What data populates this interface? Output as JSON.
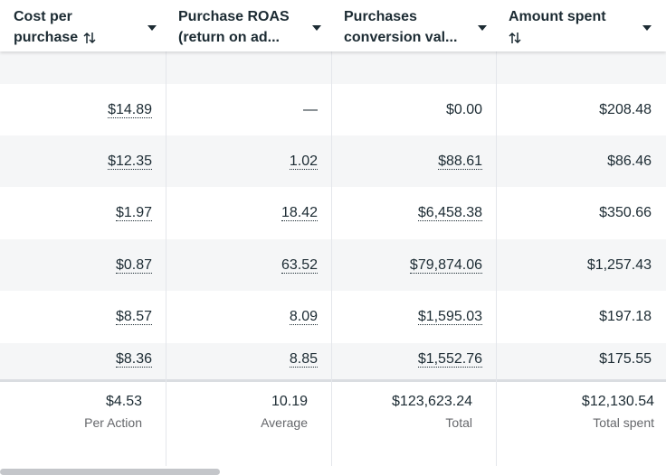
{
  "table": {
    "headers": [
      {
        "lines": [
          "Cost per",
          "purchase"
        ]
      },
      {
        "lines": [
          "Purchase ROAS",
          "(return on ad..."
        ]
      },
      {
        "lines": [
          "Purchases",
          "conversion val..."
        ]
      },
      {
        "lines": [
          "Amount spent"
        ]
      }
    ],
    "rows": [
      [
        "$14.89",
        "—",
        "$0.00",
        "$208.48"
      ],
      [
        "$12.35",
        "1.02",
        "$88.61",
        "$86.46"
      ],
      [
        "$1.97",
        "18.42",
        "$6,458.38",
        "$350.66"
      ],
      [
        "$0.87",
        "63.52",
        "$79,874.06",
        "$1,257.43"
      ],
      [
        "$8.57",
        "8.09",
        "$1,595.03",
        "$197.18"
      ],
      [
        "$8.36",
        "8.85",
        "$1,552.76",
        "$175.55"
      ]
    ],
    "footer": [
      {
        "value": "$4.53",
        "label": "Per Action"
      },
      {
        "value": "10.19",
        "label": "Average"
      },
      {
        "value": "$123,623.24",
        "label": "Total"
      },
      {
        "value": "$12,130.54",
        "label": "Total spent"
      }
    ]
  }
}
